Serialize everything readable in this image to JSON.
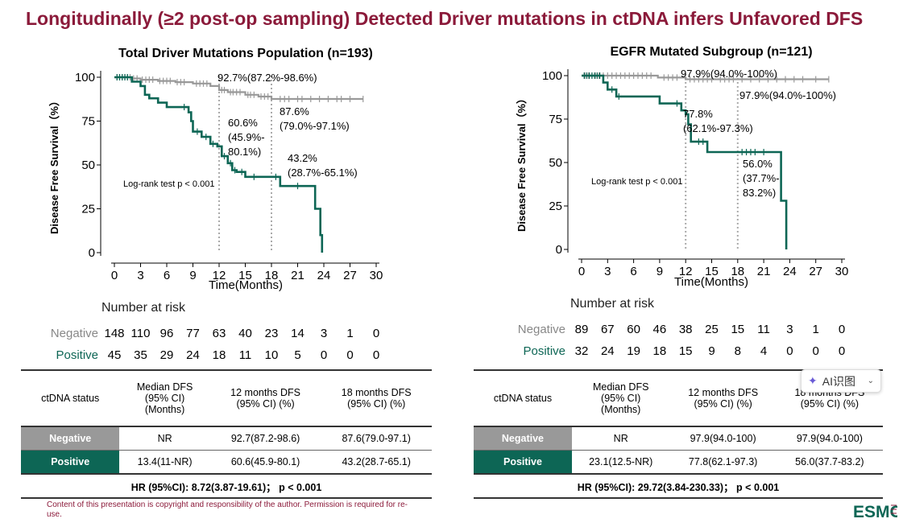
{
  "title": "Longitudinally (≥2 post-op sampling) Detected Driver mutations in ctDNA infers Unfavored DFS",
  "chart_data": [
    {
      "type": "line",
      "subtype": "kaplan-meier",
      "title": "Total Driver Mutations Population (n=193)",
      "xlabel": "Time(Months)",
      "ylabel": "Disease Free Survival（%）",
      "xlim": [
        0,
        30
      ],
      "ylim": [
        0,
        100
      ],
      "x_ticks": [
        "0",
        "3",
        "6",
        "9",
        "12",
        "15",
        "18",
        "21",
        "24",
        "27",
        "30"
      ],
      "y_ticks": [
        "0",
        "25",
        "50",
        "75",
        "100"
      ],
      "annotation": "Log-rank test p < 0.001",
      "reference_lines_x": [
        12,
        18
      ],
      "series": [
        {
          "name": "Negative",
          "color": "#999999",
          "steps": [
            [
              0,
              100
            ],
            [
              2,
              100
            ],
            [
              2,
              99.3
            ],
            [
              3,
              99.3
            ],
            [
              3,
              98.6
            ],
            [
              5,
              98.6
            ],
            [
              5,
              97.9
            ],
            [
              7,
              97.9
            ],
            [
              7,
              97.2
            ],
            [
              9,
              97.2
            ],
            [
              9,
              96.4
            ],
            [
              11,
              96.4
            ],
            [
              11,
              95.0
            ],
            [
              12,
              95.0
            ],
            [
              12,
              92.7
            ],
            [
              13,
              92.7
            ],
            [
              13,
              91.5
            ],
            [
              15,
              91.5
            ],
            [
              15,
              90.0
            ],
            [
              16.5,
              90.0
            ],
            [
              16.5,
              89.0
            ],
            [
              18,
              89.0
            ],
            [
              18,
              87.6
            ],
            [
              28.5,
              87.6
            ]
          ],
          "censor_x": [
            0.3,
            0.6,
            0.9,
            1.2,
            1.5,
            1.8,
            2.2,
            2.6,
            3.2,
            3.6,
            4.0,
            4.4,
            5.2,
            5.6,
            6.0,
            6.4,
            7.2,
            7.6,
            8.0,
            9.4,
            9.8,
            10.2,
            10.6,
            12.3,
            12.6,
            13.3,
            13.6,
            14.0,
            14.4,
            15.3,
            15.6,
            16.0,
            16.8,
            17.2,
            17.6,
            19.0,
            19.5,
            20.0,
            21.0,
            21.5,
            22.5,
            23.5,
            24.5,
            25.5,
            26.0,
            27.0,
            28.5
          ],
          "labels": [
            {
              "x": 12,
              "y": 92.7,
              "text": "92.7%(87.2%-98.6%)"
            },
            {
              "x": 18,
              "y": 87.6,
              "text": "87.6%",
              "text2": "(79.0%-97.1%)"
            }
          ]
        },
        {
          "name": "Positive",
          "color": "#0d6655",
          "steps": [
            [
              0,
              100
            ],
            [
              2,
              100
            ],
            [
              2,
              97.5
            ],
            [
              3,
              97.5
            ],
            [
              3,
              95.0
            ],
            [
              3.5,
              95.0
            ],
            [
              3.5,
              90.0
            ],
            [
              4,
              90.0
            ],
            [
              4,
              88.0
            ],
            [
              5,
              88.0
            ],
            [
              5,
              85.5
            ],
            [
              6,
              85.5
            ],
            [
              6,
              83.0
            ],
            [
              8.5,
              83.0
            ],
            [
              8.5,
              80.0
            ],
            [
              8.8,
              80.0
            ],
            [
              8.8,
              75.0
            ],
            [
              9,
              75.0
            ],
            [
              9,
              69.0
            ],
            [
              10,
              69.0
            ],
            [
              10,
              66.0
            ],
            [
              11,
              66.0
            ],
            [
              11,
              62.0
            ],
            [
              11.8,
              62.0
            ],
            [
              11.8,
              60.6
            ],
            [
              12.3,
              60.6
            ],
            [
              12.3,
              55.0
            ],
            [
              13,
              55.0
            ],
            [
              13,
              51.0
            ],
            [
              13.5,
              51.0
            ],
            [
              13.5,
              47.0
            ],
            [
              14,
              47.0
            ],
            [
              14,
              46.0
            ],
            [
              15,
              46.0
            ],
            [
              15,
              43.2
            ],
            [
              19,
              43.2
            ],
            [
              19,
              38.0
            ],
            [
              23,
              38.0
            ],
            [
              23,
              25.0
            ],
            [
              23.6,
              25.0
            ],
            [
              23.6,
              10.0
            ],
            [
              23.8,
              10.0
            ],
            [
              23.8,
              0
            ]
          ],
          "censor_x": [
            0.3,
            0.6,
            0.9,
            1.2,
            1.5,
            8.0,
            9.5,
            10.5,
            11.3,
            12.6,
            13.3,
            13.8,
            14.6,
            16.0,
            18.5,
            21.0
          ],
          "labels": [
            {
              "x": 12,
              "y": 60.6,
              "text": "60.6%",
              "text2": "(45.9%-",
              "text3": "80.1%)"
            },
            {
              "x": 18,
              "y": 43.2,
              "text": "43.2%",
              "text2": "(28.7%-65.1%)"
            }
          ]
        }
      ],
      "risk_table": {
        "title": "Number at risk",
        "negative": {
          "label": "Negative",
          "values": [
            "148",
            "110",
            "96",
            "77",
            "63",
            "40",
            "23",
            "14",
            "3",
            "1",
            "0"
          ]
        },
        "positive": {
          "label": "Positive",
          "values": [
            "45",
            "35",
            "29",
            "24",
            "18",
            "11",
            "10",
            "5",
            "0",
            "0",
            "0"
          ]
        }
      }
    },
    {
      "type": "line",
      "subtype": "kaplan-meier",
      "title": "EGFR Mutated Subgroup (n=121)",
      "xlabel": "Time(Months)",
      "ylabel": "Disease Free Survival（%）",
      "xlim": [
        0,
        30
      ],
      "ylim": [
        0,
        100
      ],
      "x_ticks": [
        "0",
        "3",
        "6",
        "9",
        "12",
        "15",
        "18",
        "21",
        "24",
        "27",
        "30"
      ],
      "y_ticks": [
        "0",
        "25",
        "50",
        "75",
        "100"
      ],
      "annotation": "Log-rank test p < 0.001",
      "reference_lines_x": [
        12,
        18
      ],
      "series": [
        {
          "name": "Negative",
          "color": "#999999",
          "steps": [
            [
              0,
              100
            ],
            [
              8.8,
              100
            ],
            [
              8.8,
              98.9
            ],
            [
              12,
              98.9
            ],
            [
              12,
              97.9
            ],
            [
              28.5,
              97.9
            ]
          ],
          "censor_x": [
            0.4,
            0.8,
            1.2,
            1.6,
            2.0,
            2.5,
            3.0,
            3.5,
            4.0,
            4.5,
            5.0,
            5.5,
            6.0,
            6.5,
            7.0,
            7.5,
            8.0,
            9.5,
            10.0,
            10.5,
            11.0,
            12.5,
            13.0,
            13.5,
            14.0,
            14.5,
            15.0,
            16.0,
            16.5,
            17.0,
            17.5,
            18.5,
            19.5,
            20.5,
            21.5,
            22.5,
            23.5,
            24.5,
            25.5,
            27.0,
            28.5
          ],
          "labels": [
            {
              "x": 12,
              "y": 97.9,
              "text": "97.9%(94.0%-100%)"
            },
            {
              "x": 18,
              "y": 97.9,
              "text": "97.9%(94.0%-100%)"
            }
          ]
        },
        {
          "name": "Positive",
          "color": "#0d6655",
          "steps": [
            [
              0,
              100
            ],
            [
              2.5,
              100
            ],
            [
              2.5,
              96.0
            ],
            [
              3,
              96.0
            ],
            [
              3,
              92.0
            ],
            [
              4,
              92.0
            ],
            [
              4,
              88.0
            ],
            [
              9,
              88.0
            ],
            [
              9,
              84.0
            ],
            [
              11.5,
              84.0
            ],
            [
              11.5,
              80.0
            ],
            [
              12,
              80.0
            ],
            [
              12,
              77.8
            ],
            [
              12.3,
              77.8
            ],
            [
              12.3,
              72.0
            ],
            [
              12.6,
              72.0
            ],
            [
              12.6,
              62.0
            ],
            [
              14.5,
              62.0
            ],
            [
              14.5,
              56.0
            ],
            [
              23,
              56.0
            ],
            [
              23,
              28.0
            ],
            [
              23.6,
              28.0
            ],
            [
              23.6,
              0
            ]
          ],
          "censor_x": [
            0.3,
            0.6,
            0.9,
            1.2,
            1.5,
            1.8,
            2.1,
            3.5,
            4.3,
            11.0,
            13.5,
            14.0,
            18.5,
            19.0,
            19.5,
            20.0,
            21.0
          ],
          "labels": [
            {
              "x": 12,
              "y": 77.8,
              "text": "77.8%",
              "text2": "(62.1%-97.3%)"
            },
            {
              "x": 18,
              "y": 56.0,
              "text": "56.0%",
              "text2": "(37.7%-",
              "text3": "83.2%)"
            }
          ]
        }
      ],
      "risk_table": {
        "title": "Number at risk",
        "negative": {
          "label": "Negative",
          "values": [
            "89",
            "67",
            "60",
            "46",
            "38",
            "25",
            "15",
            "11",
            "3",
            "1",
            "0"
          ]
        },
        "positive": {
          "label": "Positive",
          "values": [
            "32",
            "24",
            "19",
            "18",
            "15",
            "9",
            "8",
            "4",
            "0",
            "0",
            "0"
          ]
        }
      }
    }
  ],
  "summary_tables": [
    {
      "headers": [
        "ctDNA status",
        "Median DFS\n(95% CI)\n(Months)",
        "12 months DFS\n(95% CI) (%)",
        "18 months DFS\n(95% CI) (%)"
      ],
      "rows": [
        {
          "label": "Negative",
          "values": [
            "NR",
            "92.7(87.2-98.6)",
            "87.6(79.0-97.1)"
          ]
        },
        {
          "label": "Positive",
          "values": [
            "13.4(11-NR)",
            "60.6(45.9-80.1)",
            "43.2(28.7-65.1)"
          ]
        }
      ],
      "hr": "HR (95%CI): 8.72(3.87-19.61)； p < 0.001"
    },
    {
      "headers": [
        "ctDNA status",
        "Median DFS\n(95% CI)\n(Months)",
        "12 months DFS\n(95% CI) (%)",
        "18 months DFS\n(95% CI) (%)"
      ],
      "rows": [
        {
          "label": "Negative",
          "values": [
            "NR",
            "97.9(94.0-100)",
            "97.9(94.0-100)"
          ]
        },
        {
          "label": "Positive",
          "values": [
            "23.1(12.5-NR)",
            "77.8(62.1-97.3)",
            "56.0(37.7-83.2)"
          ]
        }
      ],
      "hr": "HR (95%CI): 29.72(3.84-230.33)； p < 0.001"
    }
  ],
  "ai_badge": {
    "label": "AI识图",
    "icon": "sparkle-icon"
  },
  "footer": "Content of this presentation is copyright and responsibility of the author. Permission is required for re-use.",
  "logo": {
    "text": "ESMO",
    "color": "#0d6655"
  }
}
